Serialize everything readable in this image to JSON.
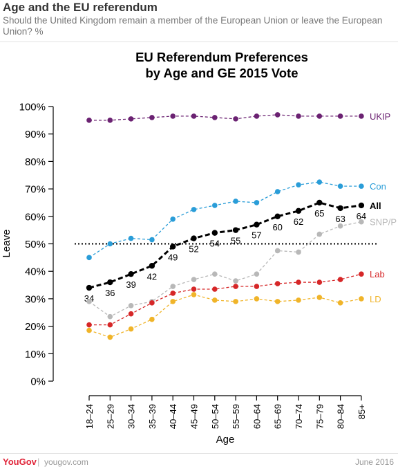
{
  "header": {
    "title": "Age and the EU referendum",
    "subtitle": "Should the United Kingdom remain a member of the European Union or leave the European Union? %"
  },
  "footer": {
    "brand": "YouGov",
    "separator": "|",
    "site": "yougov.com",
    "date": "June 2016"
  },
  "chart_data": {
    "type": "line",
    "title": "EU Referendum Preferences",
    "subtitle": "by Age and GE 2015 Vote",
    "xlabel": "Age",
    "ylabel": "Leave",
    "ylim": [
      0,
      100
    ],
    "yticks": [
      "0%",
      "10%",
      "20%",
      "30%",
      "40%",
      "50%",
      "60%",
      "70%",
      "80%",
      "90%",
      "100%"
    ],
    "reference_line": 50,
    "categories": [
      "18–24",
      "25–29",
      "30–34",
      "35–39",
      "40–44",
      "45–49",
      "50–54",
      "55–59",
      "60–64",
      "65–69",
      "70–74",
      "75–79",
      "80–84",
      "85+"
    ],
    "series": [
      {
        "name": "UKIP",
        "color": "#6b2272",
        "values": [
          95,
          95,
          95.5,
          96,
          96.5,
          96.5,
          96,
          95.5,
          96.5,
          97,
          96.5,
          96.5,
          96.5,
          96.5
        ]
      },
      {
        "name": "Con",
        "color": "#2a9dd8",
        "values": [
          45,
          50,
          52,
          51.5,
          59,
          62.5,
          64,
          65.5,
          65,
          69,
          71.5,
          72.5,
          71,
          71
        ]
      },
      {
        "name": "All",
        "color": "#000000",
        "bold": true,
        "labels": [
          "34",
          "36",
          "39",
          "42",
          "49",
          "52",
          "54",
          "55",
          "57",
          "60",
          "62",
          "65",
          "63",
          "64"
        ],
        "values": [
          34,
          36,
          39,
          42,
          49,
          52,
          54,
          55,
          57,
          60,
          62,
          65,
          63,
          64
        ]
      },
      {
        "name": "SNP/P",
        "color": "#b8b8b8",
        "values": [
          29,
          23.5,
          27.5,
          29,
          34.5,
          37,
          39,
          36.5,
          39,
          47.5,
          47,
          53.5,
          56.5,
          58
        ]
      },
      {
        "name": "Lab",
        "color": "#d62728",
        "values": [
          20.5,
          20.5,
          24.5,
          28.5,
          32,
          33.5,
          33.5,
          34.5,
          34.5,
          35.5,
          36,
          36,
          37,
          39
        ]
      },
      {
        "name": "LD",
        "color": "#f0b429",
        "values": [
          18.5,
          16,
          19,
          22.5,
          29,
          31.5,
          29.5,
          29,
          30,
          29,
          29.5,
          30.5,
          28.5,
          30
        ]
      }
    ]
  }
}
